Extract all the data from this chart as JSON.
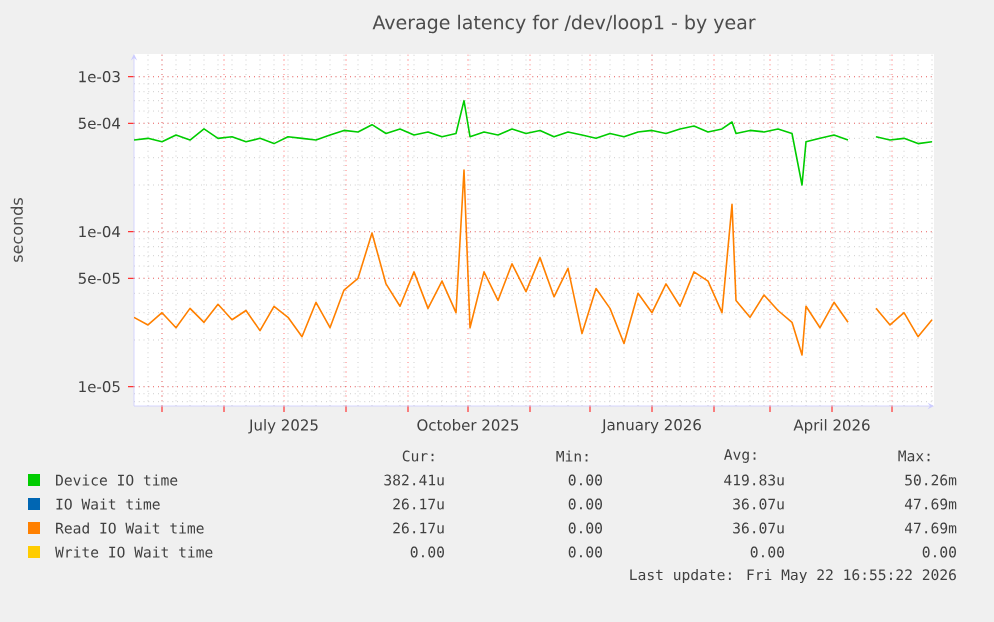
{
  "chart_data": {
    "type": "line",
    "title": "Average latency for /dev/loop1 - by year",
    "ylabel": "seconds",
    "log": "y",
    "grid": true,
    "legend": "bottom",
    "xlim": [
      "2025-04-17",
      "2026-05-22"
    ],
    "xticks": [
      {
        "value": "2025-05-01",
        "label": null
      },
      {
        "value": "2025-06-01",
        "label": null
      },
      {
        "value": "2025-07-01",
        "label": "July 2025"
      },
      {
        "value": "2025-08-01",
        "label": null
      },
      {
        "value": "2025-09-01",
        "label": null
      },
      {
        "value": "2025-10-01",
        "label": "October 2025"
      },
      {
        "value": "2025-11-01",
        "label": null
      },
      {
        "value": "2025-12-01",
        "label": null
      },
      {
        "value": "2026-01-01",
        "label": "January 2026"
      },
      {
        "value": "2026-02-01",
        "label": null
      },
      {
        "value": "2026-03-01",
        "label": null
      },
      {
        "value": "2026-04-01",
        "label": "April 2026"
      },
      {
        "value": "2026-05-01",
        "label": null
      }
    ],
    "ylim": [
      7.5e-06,
      0.0014
    ],
    "yticks": [
      {
        "value": 1e-05,
        "label": "1e-05"
      },
      {
        "value": 5e-05,
        "label": "5e-05"
      },
      {
        "value": 0.0001,
        "label": "1e-04"
      },
      {
        "value": 0.0005,
        "label": "5e-04"
      },
      {
        "value": 0.001,
        "label": "1e-03"
      }
    ],
    "x": [
      "2025-04-17",
      "2025-04-24",
      "2025-05-01",
      "2025-05-08",
      "2025-05-15",
      "2025-05-22",
      "2025-05-29",
      "2025-06-05",
      "2025-06-12",
      "2025-06-19",
      "2025-06-26",
      "2025-07-03",
      "2025-07-10",
      "2025-07-17",
      "2025-07-24",
      "2025-07-31",
      "2025-08-07",
      "2025-08-14",
      "2025-08-21",
      "2025-08-28",
      "2025-09-04",
      "2025-09-11",
      "2025-09-18",
      "2025-09-25",
      "2025-09-29",
      "2025-10-02",
      "2025-10-09",
      "2025-10-16",
      "2025-10-23",
      "2025-10-30",
      "2025-11-06",
      "2025-11-13",
      "2025-11-20",
      "2025-11-27",
      "2025-12-04",
      "2025-12-11",
      "2025-12-18",
      "2025-12-25",
      "2026-01-01",
      "2026-01-08",
      "2026-01-15",
      "2026-01-22",
      "2026-01-29",
      "2026-02-05",
      "2026-02-10",
      "2026-02-12",
      "2026-02-19",
      "2026-02-26",
      "2026-03-05",
      "2026-03-12",
      "2026-03-17",
      "2026-03-19",
      "2026-03-26",
      "2026-04-02",
      "2026-04-09",
      "2026-04-16",
      "2026-04-23",
      "2026-04-30",
      "2026-05-07",
      "2026-05-14",
      "2026-05-21"
    ],
    "series": [
      {
        "name": "Device IO time",
        "color": "#00cc00",
        "values": [
          0.00039,
          0.0004,
          0.00038,
          0.00042,
          0.00039,
          0.00046,
          0.0004,
          0.00041,
          0.00038,
          0.0004,
          0.00037,
          0.00041,
          0.0004,
          0.00039,
          0.00042,
          0.00045,
          0.00044,
          0.00049,
          0.00043,
          0.00046,
          0.00042,
          0.00044,
          0.00041,
          0.00043,
          0.0007,
          0.00041,
          0.00044,
          0.00042,
          0.00046,
          0.00043,
          0.00045,
          0.00041,
          0.00044,
          0.00042,
          0.0004,
          0.00043,
          0.00041,
          0.00044,
          0.00045,
          0.00043,
          0.00046,
          0.00048,
          0.00044,
          0.00046,
          0.00051,
          0.00043,
          0.00045,
          0.00044,
          0.00046,
          0.00043,
          0.0002,
          0.00038,
          0.0004,
          0.00042,
          0.00039,
          null,
          0.00041,
          0.00039,
          0.0004,
          0.00037,
          0.00038
        ]
      },
      {
        "name": "IO Wait time",
        "color": "#0066b3",
        "values": [
          null,
          null,
          null,
          null,
          null,
          null,
          null,
          null,
          null,
          null,
          null,
          null,
          null,
          null,
          null,
          null,
          null,
          null,
          null,
          null,
          null,
          null,
          null,
          null,
          null,
          null,
          null,
          null,
          null,
          null,
          null,
          null,
          null,
          null,
          null,
          null,
          null,
          null,
          null,
          null,
          null,
          null,
          null,
          null,
          null,
          null,
          null,
          null,
          null,
          null,
          null,
          null,
          null,
          null,
          null,
          null,
          null,
          null,
          null,
          null,
          null
        ]
      },
      {
        "name": "Read IO Wait time",
        "color": "#ff8000",
        "values": [
          2.8e-05,
          2.5e-05,
          3e-05,
          2.4e-05,
          3.2e-05,
          2.6e-05,
          3.4e-05,
          2.7e-05,
          3.1e-05,
          2.3e-05,
          3.3e-05,
          2.8e-05,
          2.1e-05,
          3.5e-05,
          2.4e-05,
          4.2e-05,
          5e-05,
          9.8e-05,
          4.6e-05,
          3.3e-05,
          5.5e-05,
          3.2e-05,
          4.8e-05,
          3e-05,
          0.00025,
          2.4e-05,
          5.5e-05,
          3.6e-05,
          6.2e-05,
          4.1e-05,
          6.8e-05,
          3.8e-05,
          5.8e-05,
          2.2e-05,
          4.3e-05,
          3.2e-05,
          1.9e-05,
          4e-05,
          3e-05,
          4.6e-05,
          3.3e-05,
          5.5e-05,
          4.8e-05,
          3e-05,
          0.00015,
          3.6e-05,
          2.8e-05,
          3.9e-05,
          3.1e-05,
          2.6e-05,
          1.6e-05,
          3.3e-05,
          2.4e-05,
          3.5e-05,
          2.6e-05,
          null,
          3.2e-05,
          2.5e-05,
          3e-05,
          2.1e-05,
          2.7e-05
        ]
      },
      {
        "name": "Write IO Wait time",
        "color": "#ffcc00",
        "values": [
          null,
          null,
          null,
          null,
          null,
          null,
          null,
          null,
          null,
          null,
          null,
          null,
          null,
          null,
          null,
          null,
          null,
          null,
          null,
          null,
          null,
          null,
          null,
          null,
          null,
          null,
          null,
          null,
          null,
          null,
          null,
          null,
          null,
          null,
          null,
          null,
          null,
          null,
          null,
          null,
          null,
          null,
          null,
          null,
          null,
          null,
          null,
          null,
          null,
          null,
          null,
          null,
          null,
          null,
          null,
          null,
          null,
          null,
          null,
          null,
          null
        ]
      }
    ],
    "annotations": [
      "Cur:",
      "Min:",
      "Avg:",
      "Max:",
      "382.41u",
      "0.00",
      "419.83u",
      "50.26m",
      "26.17u",
      "0.00",
      "36.07u",
      "47.69m",
      "26.17u",
      "0.00",
      "36.07u",
      "47.69m",
      "0.00",
      "0.00",
      "0.00",
      "0.00",
      "Last update: Fri May 22 16:55:22 2026"
    ]
  }
}
